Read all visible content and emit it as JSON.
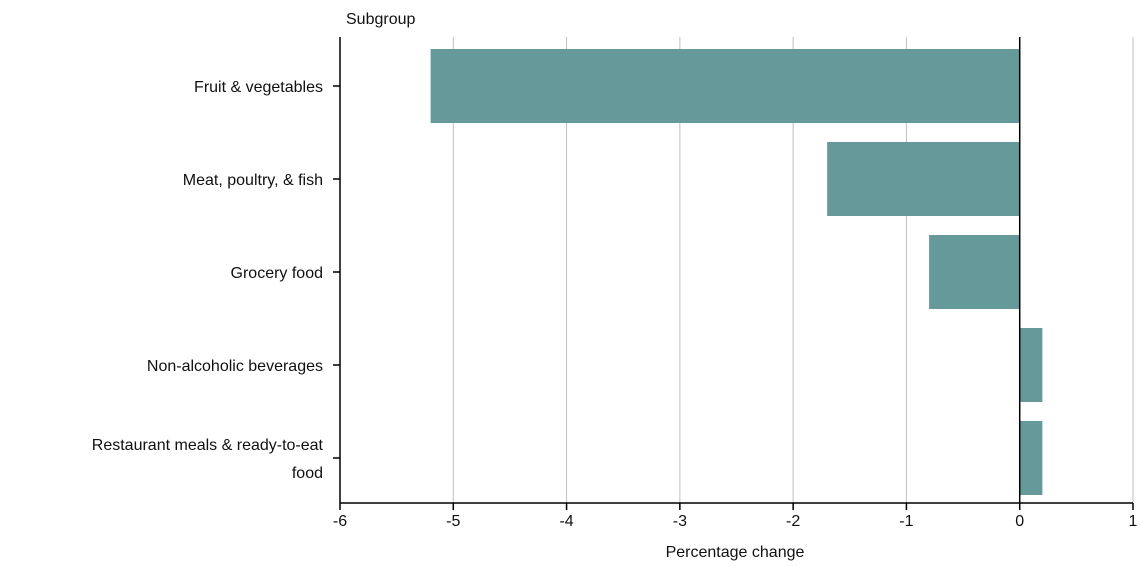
{
  "chart_data": {
    "type": "bar",
    "orientation": "horizontal",
    "y_axis_title": "Subgroup",
    "xlabel": "Percentage change",
    "categories": [
      "Fruit & vegetables",
      "Meat, poultry, & fish",
      "Grocery food",
      "Non-alcoholic beverages",
      "Restaurant meals & ready-to-eat food"
    ],
    "category_label_lines": [
      [
        "Fruit & vegetables"
      ],
      [
        "Meat, poultry, & fish"
      ],
      [
        "Grocery food"
      ],
      [
        "Non-alcoholic beverages"
      ],
      [
        "Restaurant meals & ready-to-eat",
        "food"
      ]
    ],
    "values": [
      -5.2,
      -1.7,
      -0.8,
      0.2,
      0.2
    ],
    "xlim": [
      -6,
      1
    ],
    "xticks": [
      -6,
      -5,
      -4,
      -3,
      -2,
      -1,
      0,
      1
    ],
    "grid": "vertical",
    "bar_color": "#669999",
    "grid_color": "#c0c0c0",
    "axis_color": "#000000"
  }
}
